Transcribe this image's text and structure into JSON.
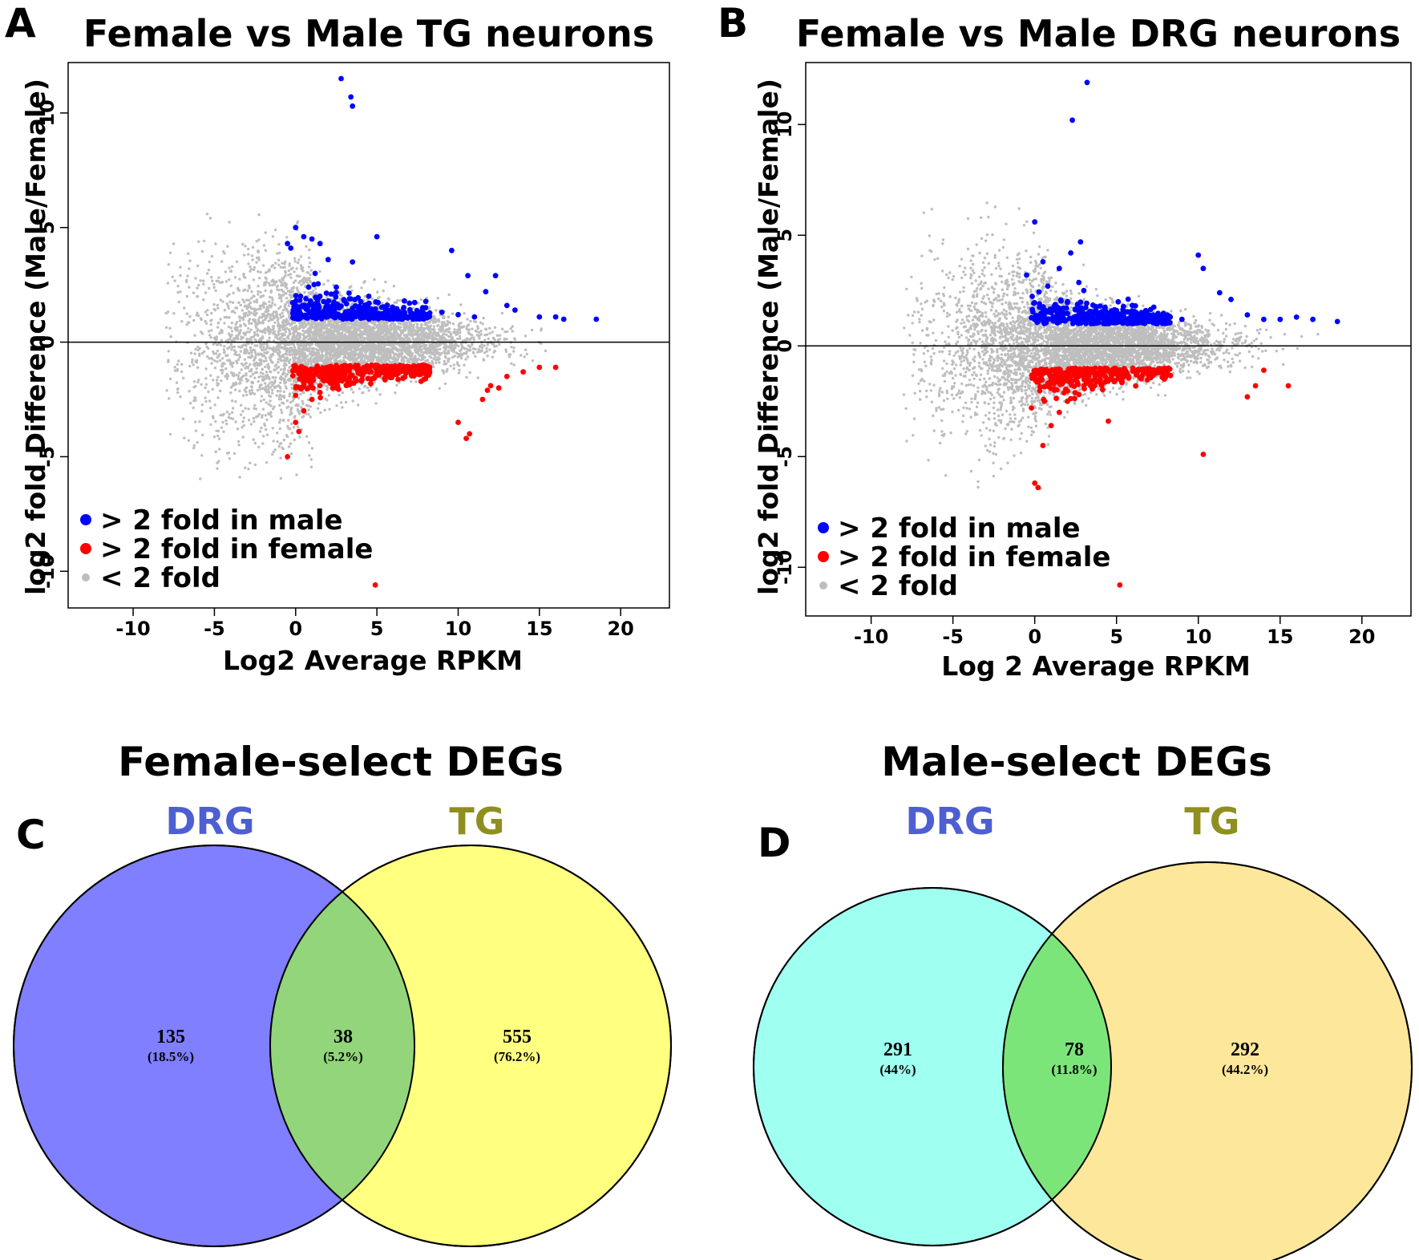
{
  "chart_data": [
    {
      "panel": "A",
      "type": "scatter",
      "title": "Female vs Male TG neurons",
      "xlabel": "Log2 Average RPKM",
      "ylabel": "log2 fold Difference (Male/Female)",
      "xlim": [
        -14,
        23
      ],
      "ylim": [
        -11.6,
        12.2
      ],
      "xticks": [
        -10,
        -5,
        0,
        5,
        10,
        15,
        20
      ],
      "yticks": [
        -10,
        -5,
        0,
        5,
        10
      ],
      "hline": 0,
      "legend": {
        "position": "bottom-left",
        "entries": [
          {
            "label": "> 2 fold in male",
            "color": "#0000ff"
          },
          {
            "label": "> 2 fold in female",
            "color": "#ff0000"
          },
          {
            "label": "< 2 fold",
            "color": "#bebebe"
          }
        ]
      },
      "series": [
        {
          "name": "> 2 fold in male",
          "color": "#0000ff",
          "x": [
            2.8,
            3.4,
            3.5,
            0.0,
            -0.5,
            -0.3,
            0.5,
            1.0,
            1.5,
            2.0,
            5.0,
            9.6,
            10.6,
            12.3,
            11.7,
            3.5,
            1.2,
            2.5,
            4.5,
            7.0,
            8.0,
            9.0,
            10.0,
            11.0,
            13.0,
            13.5,
            15.0,
            16.0,
            16.5,
            18.5,
            0.3,
            0.8,
            2.2,
            3.0,
            4.0,
            6.0
          ],
          "y": [
            11.5,
            10.7,
            10.3,
            5.0,
            4.3,
            4.1,
            4.6,
            4.5,
            4.3,
            3.6,
            4.6,
            4.0,
            2.9,
            2.9,
            2.2,
            3.5,
            3.0,
            2.4,
            2.0,
            1.7,
            1.5,
            1.3,
            1.2,
            1.1,
            1.6,
            1.4,
            1.1,
            1.1,
            1.0,
            1.0,
            2.0,
            2.4,
            2.1,
            1.8,
            1.5,
            1.3
          ]
        },
        {
          "name": "> 2 fold in female",
          "color": "#ff0000",
          "x": [
            -0.5,
            0.0,
            0.5,
            0.2,
            1.0,
            1.5,
            2.0,
            3.0,
            4.0,
            5.0,
            6.0,
            7.0,
            10.0,
            10.5,
            10.7,
            11.5,
            11.8,
            12.0,
            12.5,
            13.0,
            14.0,
            15.0,
            16.0,
            4.9,
            1.5,
            2.5
          ],
          "y": [
            -5.0,
            -3.5,
            -3.0,
            -3.9,
            -2.5,
            -2.2,
            -1.7,
            -1.6,
            -1.4,
            -1.3,
            -1.2,
            -1.1,
            -3.5,
            -4.2,
            -4.0,
            -2.5,
            -2.1,
            -1.9,
            -2.0,
            -1.5,
            -1.3,
            -1.1,
            -1.1,
            -10.6,
            -1.9,
            -1.5
          ]
        }
      ]
    },
    {
      "panel": "B",
      "type": "scatter",
      "title": "Female vs Male DRG neurons",
      "xlabel": "Log 2 Average RPKM",
      "ylabel": "log2 fold Difference (Male/Female)",
      "xlim": [
        -14,
        23
      ],
      "ylim": [
        -12.2,
        12.8
      ],
      "xticks": [
        -10,
        -5,
        0,
        5,
        10,
        15,
        20
      ],
      "yticks": [
        -10,
        -5,
        0,
        5,
        10
      ],
      "hline": 0,
      "legend": {
        "position": "bottom-left",
        "entries": [
          {
            "label": "> 2 fold in male",
            "color": "#0000ff"
          },
          {
            "label": "> 2 fold in female",
            "color": "#ff0000"
          },
          {
            "label": "< 2 fold",
            "color": "#bebebe"
          }
        ]
      },
      "series": [
        {
          "name": "> 2 fold in male",
          "color": "#0000ff",
          "x": [
            3.2,
            2.3,
            0.0,
            2.2,
            2.8,
            1.5,
            0.5,
            -0.5,
            10.0,
            10.3,
            11.3,
            12.0,
            13.0,
            14.0,
            15.0,
            16.0,
            17.0,
            18.5,
            1.0,
            2.0,
            3.0,
            4.0,
            5.0,
            6.0,
            7.0,
            8.0,
            9.0,
            0.8
          ],
          "y": [
            11.9,
            10.2,
            5.6,
            4.2,
            4.7,
            3.5,
            3.8,
            3.2,
            4.1,
            3.5,
            2.4,
            2.1,
            1.4,
            1.2,
            1.2,
            1.3,
            1.2,
            1.1,
            1.5,
            2.0,
            2.5,
            1.8,
            1.6,
            1.5,
            1.4,
            1.3,
            1.2,
            2.7
          ]
        },
        {
          "name": "> 2 fold in female",
          "color": "#ff0000",
          "x": [
            0.0,
            0.2,
            0.5,
            1.0,
            1.5,
            2.0,
            3.0,
            4.0,
            5.0,
            6.0,
            4.5,
            0.6,
            -0.2,
            10.3,
            13.0,
            13.5,
            14.0,
            15.5,
            5.2,
            2.7,
            1.2,
            0.8
          ],
          "y": [
            -6.2,
            -6.4,
            -4.5,
            -3.6,
            -3.0,
            -2.5,
            -1.8,
            -1.5,
            -1.2,
            -1.0,
            -3.4,
            -2.5,
            -2.8,
            -4.9,
            -2.3,
            -1.8,
            -1.1,
            -1.8,
            -10.8,
            -2.2,
            -2.0,
            -1.7
          ]
        }
      ]
    },
    {
      "panel": "C",
      "type": "venn",
      "title": "Female-select DEGs",
      "sets": [
        {
          "label": "DRG",
          "only": 135,
          "only_pct": "(18.5%)",
          "fill": "#7f7fff",
          "label_color": "#4e5fd2"
        },
        {
          "label": "TG",
          "only": 555,
          "only_pct": "(76.2%)",
          "fill": "#ffff80",
          "label_color": "#8f8f20"
        }
      ],
      "intersection": {
        "count": 38,
        "pct": "(5.2%)",
        "fill": "#92d57a"
      }
    },
    {
      "panel": "D",
      "type": "venn",
      "title": "Male-select DEGs",
      "sets": [
        {
          "label": "DRG",
          "only": 291,
          "only_pct": "(44%)",
          "fill": "#9ffff0",
          "label_color": "#4e5fd2"
        },
        {
          "label": "TG",
          "only": 292,
          "only_pct": "(44.2%)",
          "fill": "#fde79b",
          "label_color": "#8f8f20"
        }
      ],
      "intersection": {
        "count": 78,
        "pct": "(11.8%)",
        "fill": "#7ce57a"
      }
    }
  ]
}
